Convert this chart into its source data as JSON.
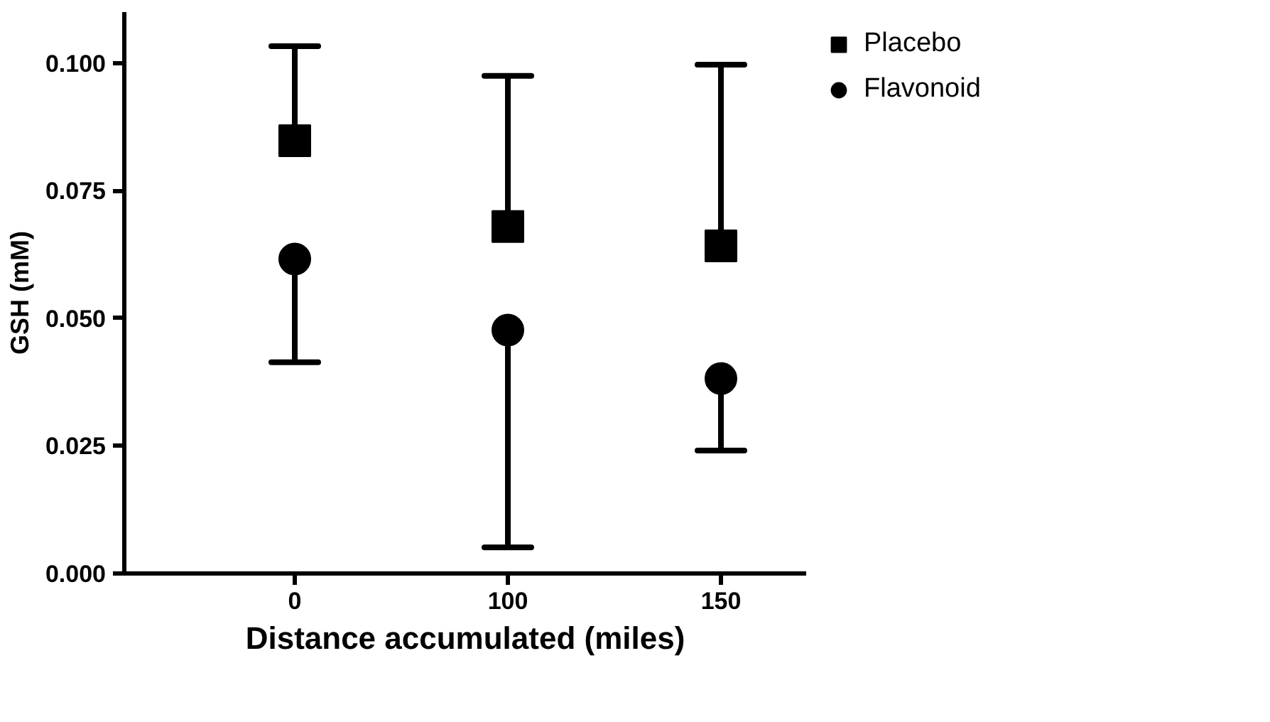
{
  "chart_data": {
    "type": "scatter",
    "xlabel": "Distance accumulated (miles)",
    "ylabel": "GSH (mM)",
    "categories": [
      "0",
      "100",
      "150"
    ],
    "ylim": [
      0,
      0.11
    ],
    "yticks": [
      {
        "value": 0,
        "label": "0.000"
      },
      {
        "value": 0.025,
        "label": "0.025"
      },
      {
        "value": 0.05,
        "label": "0.050"
      },
      {
        "value": 0.075,
        "label": "0.075"
      },
      {
        "value": 0.1,
        "label": "0.100"
      }
    ],
    "series": [
      {
        "name": "Placebo",
        "color": "#000000",
        "marker": "square",
        "values": [
          0.0848,
          0.068,
          0.0642
        ],
        "errors": [
          [
            0.0848,
            0.1033
          ],
          [
            0.068,
            0.0975
          ],
          [
            0.0642,
            0.0997
          ]
        ]
      },
      {
        "name": "Flavonoid",
        "color": "#000000",
        "marker": "circle",
        "values": [
          0.0616,
          0.0477,
          0.0382
        ],
        "errors": [
          [
            0.0414,
            0.0616
          ],
          [
            0.0051,
            0.0477
          ],
          [
            0.0241,
            0.0382
          ]
        ]
      }
    ],
    "grid": false,
    "legend": "top right"
  }
}
